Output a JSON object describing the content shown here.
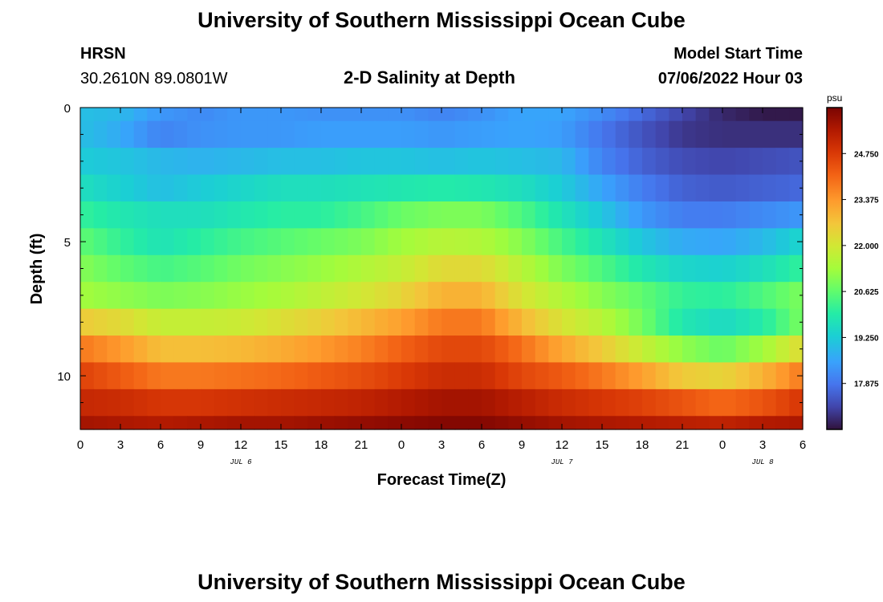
{
  "header": {
    "title": "University of Southern Mississippi Ocean Cube",
    "station": "HRSN",
    "coords": "30.2610N  89.0801W",
    "subtitle": "2-D Salinity at Depth",
    "start_label": "Model Start Time",
    "start_value": "07/06/2022 Hour 03"
  },
  "footer": {
    "title": "University of Southern Mississippi Ocean Cube"
  },
  "colors": {
    "scale": [
      "#30123b",
      "#4145ab",
      "#4675ed",
      "#39a2fc",
      "#1bcfd4",
      "#24eca6",
      "#61fc6c",
      "#a4fc3b",
      "#d1e834",
      "#f3c63a",
      "#fe9b2d",
      "#f36315",
      "#d93806",
      "#b11901",
      "#7a0402"
    ]
  },
  "chart_data": {
    "type": "heatmap",
    "title": "2-D Salinity at Depth",
    "xlabel": "Forecast Time(Z)",
    "ylabel": "Depth (ft)",
    "x_ticks": [
      "0",
      "3",
      "6",
      "9",
      "12",
      "15",
      "18",
      "21",
      "0",
      "3",
      "6",
      "9",
      "12",
      "15",
      "18",
      "21",
      "0",
      "3",
      "6"
    ],
    "x_range_hours": [
      0,
      54
    ],
    "date_labels": [
      {
        "label": "JUL 6",
        "hour": 12
      },
      {
        "label": "JUL 7",
        "hour": 36
      },
      {
        "label": "JUL 8",
        "hour": 51
      }
    ],
    "y_ticks": [
      "0",
      "5",
      "10"
    ],
    "y_range_ft": [
      0,
      12
    ],
    "colorbar": {
      "unit": "psu",
      "min": 16.5,
      "max": 26.125,
      "labels": [
        "24.750",
        "23.375",
        "22.000",
        "20.625",
        "19.250",
        "17.875"
      ],
      "label_values": [
        24.75,
        23.375,
        22.0,
        20.625,
        19.25,
        17.875
      ]
    },
    "depth_rows_ft": [
      0,
      1,
      2,
      3,
      4,
      5,
      6,
      7,
      8,
      9,
      10,
      11,
      12
    ],
    "time_samples_hours": [
      0,
      3,
      6,
      9,
      12,
      15,
      18,
      21,
      24,
      27,
      30,
      33,
      36,
      39,
      42,
      45,
      48,
      51,
      54
    ],
    "values": [
      [
        19.0,
        18.9,
        18.4,
        18.2,
        18.4,
        18.4,
        18.3,
        18.3,
        18.3,
        18.1,
        18.3,
        18.6,
        18.6,
        18.2,
        17.7,
        17.2,
        16.8,
        16.6,
        16.6
      ],
      [
        19.0,
        18.7,
        18.1,
        18.3,
        18.4,
        18.4,
        18.5,
        18.5,
        18.5,
        18.4,
        18.5,
        18.6,
        18.5,
        17.9,
        17.4,
        17.0,
        16.9,
        16.9,
        16.9
      ],
      [
        19.2,
        19.1,
        18.9,
        18.8,
        18.9,
        19.0,
        19.0,
        19.1,
        19.1,
        19.0,
        19.1,
        19.0,
        18.9,
        18.1,
        17.6,
        17.3,
        17.2,
        17.3,
        17.4
      ],
      [
        19.6,
        19.3,
        19.0,
        19.2,
        19.4,
        19.6,
        19.6,
        19.7,
        19.8,
        19.9,
        19.8,
        19.6,
        19.2,
        18.6,
        18.0,
        17.6,
        17.5,
        17.6,
        17.7
      ],
      [
        20.1,
        19.8,
        19.6,
        19.6,
        19.8,
        20.0,
        20.0,
        20.3,
        20.7,
        20.9,
        20.9,
        20.4,
        19.7,
        19.1,
        18.4,
        18.0,
        18.0,
        18.2,
        18.4
      ],
      [
        20.6,
        20.1,
        19.7,
        20.0,
        20.3,
        20.5,
        20.7,
        20.9,
        21.3,
        21.6,
        21.5,
        21.0,
        20.3,
        19.7,
        19.1,
        18.7,
        18.6,
        18.9,
        19.4
      ],
      [
        21.0,
        20.6,
        20.3,
        20.5,
        20.8,
        21.0,
        21.2,
        21.5,
        21.8,
        22.3,
        22.3,
        21.6,
        20.9,
        20.4,
        19.8,
        19.4,
        19.3,
        19.6,
        20.1
      ],
      [
        21.3,
        21.1,
        20.9,
        21.0,
        21.2,
        21.4,
        21.7,
        22.0,
        22.4,
        23.0,
        23.0,
        22.1,
        21.5,
        21.0,
        20.6,
        20.1,
        20.0,
        20.4,
        20.9
      ],
      [
        22.6,
        22.3,
        21.8,
        21.8,
        21.9,
        22.2,
        22.5,
        22.9,
        23.3,
        23.8,
        23.8,
        22.9,
        22.1,
        21.6,
        20.8,
        19.8,
        19.5,
        19.9,
        20.9
      ],
      [
        23.8,
        23.4,
        22.8,
        22.8,
        22.9,
        23.1,
        23.4,
        23.7,
        24.1,
        24.5,
        24.5,
        23.9,
        23.2,
        22.6,
        21.8,
        21.1,
        20.7,
        21.3,
        22.3
      ],
      [
        24.6,
        24.2,
        23.8,
        23.8,
        23.9,
        24.0,
        24.2,
        24.4,
        24.7,
        25.0,
        25.0,
        24.5,
        24.2,
        23.8,
        23.3,
        22.6,
        22.4,
        23.0,
        23.8
      ],
      [
        25.1,
        25.0,
        24.8,
        24.8,
        24.9,
        25.0,
        25.1,
        25.2,
        25.4,
        25.6,
        25.6,
        25.3,
        25.0,
        24.8,
        24.6,
        24.3,
        24.0,
        24.3,
        24.8
      ],
      [
        25.6,
        25.5,
        25.4,
        25.5,
        25.6,
        25.6,
        25.7,
        25.8,
        25.9,
        26.0,
        26.0,
        25.8,
        25.6,
        25.5,
        25.4,
        25.3,
        25.2,
        25.4,
        25.5
      ]
    ]
  }
}
